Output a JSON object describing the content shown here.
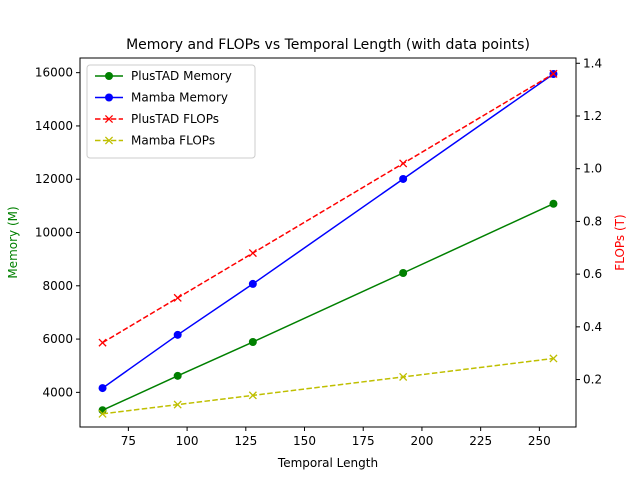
{
  "chart_data": {
    "type": "line",
    "title": "Memory and FLOPs vs Temporal Length (with data points)",
    "xlabel": "Temporal Length",
    "ylabel_left": "Memory (M)",
    "ylabel_right": "FLOPs (T)",
    "xlim": [
      54.4,
      265.6
    ],
    "ylim_left": [
      2700,
      16550
    ],
    "ylim_right": [
      0.02,
      1.42
    ],
    "x_ticks": [
      75,
      100,
      125,
      150,
      175,
      200,
      225,
      250
    ],
    "y_left_ticks": [
      4000,
      6000,
      8000,
      10000,
      12000,
      14000,
      16000
    ],
    "y_right_ticks": [
      0.2,
      0.4,
      0.6,
      0.8,
      1.0,
      1.2,
      1.4
    ],
    "grid": false,
    "legend_position": "top-left",
    "colors": {
      "left_axis_label": "#008000",
      "right_axis_label": "#ff0000"
    },
    "series": [
      {
        "name": "PlusTAD Memory",
        "axis": "left",
        "color": "#008000",
        "line": "solid",
        "marker": "circle",
        "x": [
          64,
          96,
          128,
          192,
          256
        ],
        "values": [
          3330,
          4620,
          5890,
          8480,
          11080
        ]
      },
      {
        "name": "Mamba Memory",
        "axis": "left",
        "color": "#0000ff",
        "line": "solid",
        "marker": "circle",
        "x": [
          64,
          96,
          128,
          192,
          256
        ],
        "values": [
          4160,
          6160,
          8070,
          12010,
          15950
        ]
      },
      {
        "name": "PlusTAD FLOPs",
        "axis": "right",
        "color": "#ff0000",
        "line": "dashed",
        "marker": "x",
        "x": [
          64,
          96,
          128,
          192,
          256
        ],
        "values": [
          0.34,
          0.51,
          0.68,
          1.02,
          1.36
        ]
      },
      {
        "name": "Mamba FLOPs",
        "axis": "right",
        "color": "#bfbf00",
        "line": "dashed",
        "marker": "x",
        "x": [
          64,
          96,
          128,
          192,
          256
        ],
        "values": [
          0.07,
          0.105,
          0.14,
          0.21,
          0.28
        ]
      }
    ]
  }
}
